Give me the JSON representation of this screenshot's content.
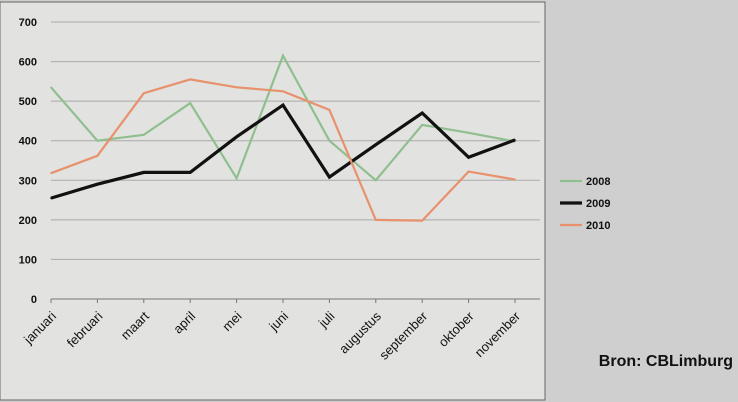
{
  "chart_data": {
    "type": "line",
    "title": "",
    "xlabel": "",
    "ylabel": "",
    "categories": [
      "januari",
      "februari",
      "maart",
      "april",
      "mei",
      "juni",
      "juli",
      "augustus",
      "september",
      "oktober",
      "november"
    ],
    "ylim": [
      0,
      700
    ],
    "yticks": [
      0,
      100,
      200,
      300,
      400,
      500,
      600,
      700
    ],
    "grid": true,
    "legend_position": "right",
    "series": [
      {
        "name": "2008",
        "color": "#8fbf8f",
        "values": [
          535,
          400,
          415,
          495,
          305,
          615,
          400,
          300,
          440,
          420,
          398
        ]
      },
      {
        "name": "2009",
        "color": "#111111",
        "values": [
          255,
          290,
          320,
          320,
          410,
          490,
          308,
          390,
          470,
          358,
          402
        ]
      },
      {
        "name": "2010",
        "color": "#e8916d",
        "values": [
          318,
          362,
          520,
          555,
          535,
          525,
          478,
          200,
          198,
          322,
          302
        ]
      }
    ]
  },
  "source": "Bron: CBLimburg"
}
